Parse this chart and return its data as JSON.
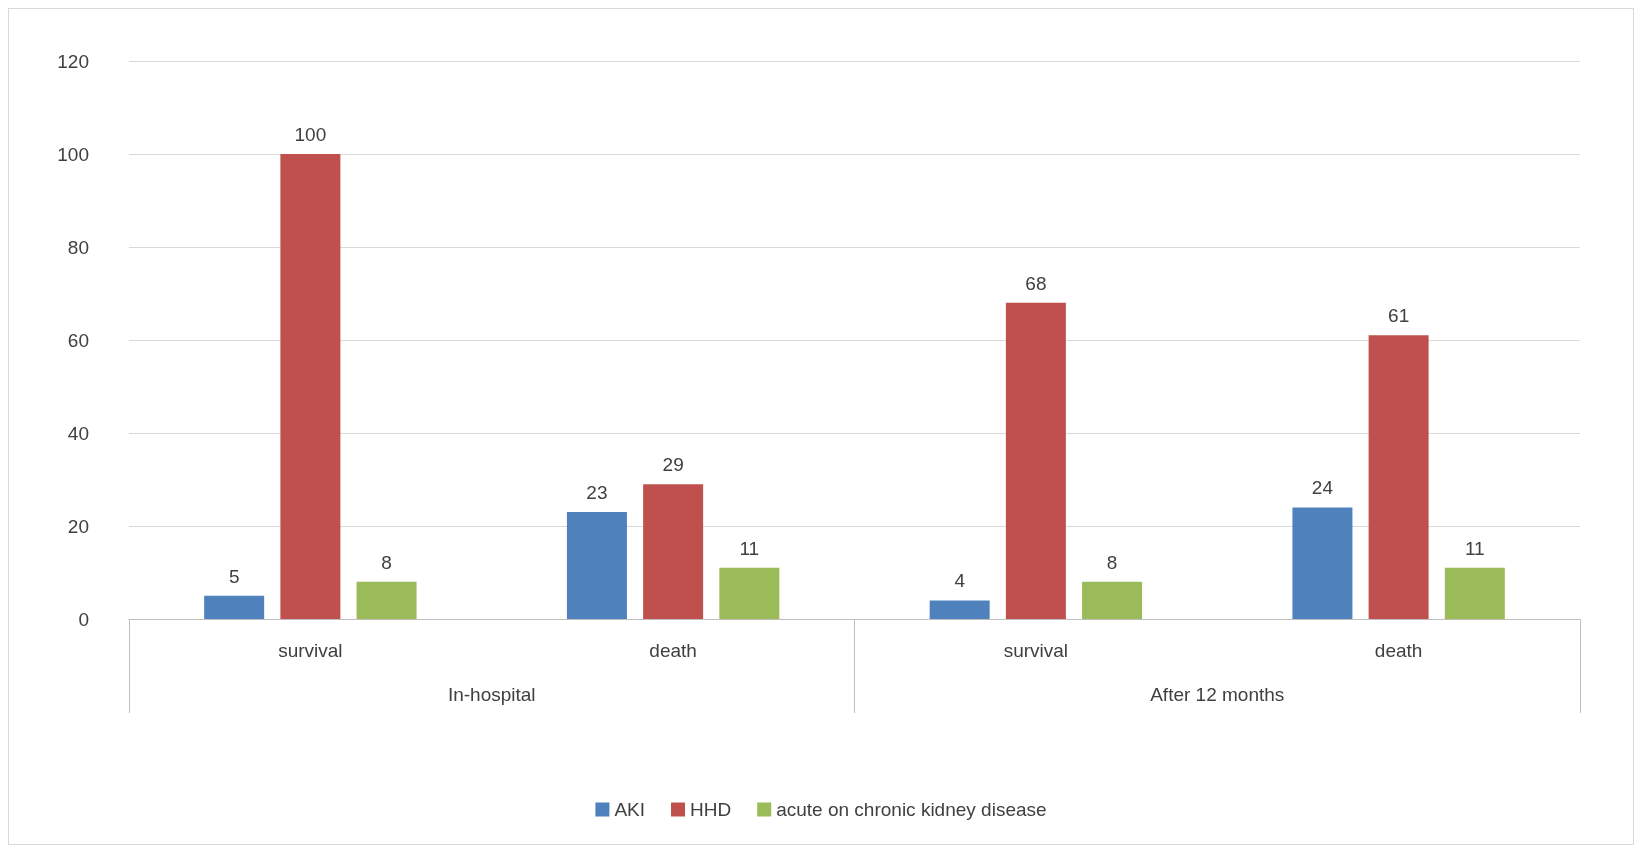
{
  "chart_data": {
    "type": "bar",
    "categories": [
      "survival",
      "death",
      "survival",
      "death"
    ],
    "series": [
      {
        "name": "AKI",
        "color": "#4f81bd",
        "values": [
          5,
          23,
          4,
          24
        ]
      },
      {
        "name": "HHD",
        "color": "#c0504d",
        "values": [
          100,
          29,
          68,
          61
        ]
      },
      {
        "name": "acute on chronic kidney disease",
        "color": "#9bbb59",
        "values": [
          8,
          11,
          8,
          11
        ]
      }
    ],
    "annotations": [
      "In-hospital",
      "After 12 months"
    ],
    "ylim": [
      0,
      120
    ],
    "yticks": [
      0,
      20,
      40,
      60,
      80,
      100,
      120
    ],
    "grid": "y",
    "legend": "bottom",
    "data_labels": true
  }
}
